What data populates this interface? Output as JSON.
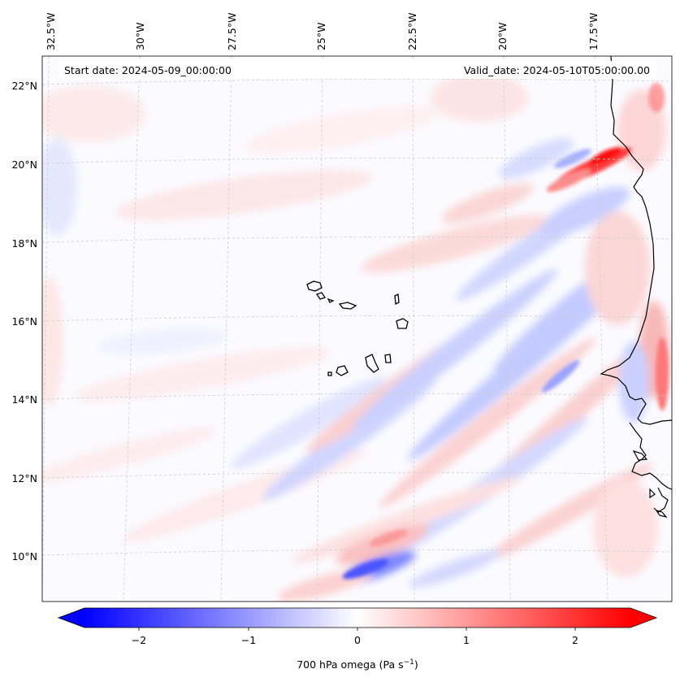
{
  "figure": {
    "start_date_label": "Start date: 2024-05-09_00:00:00",
    "valid_date_label": "Valid_date: 2024-05-10T05:00:00.00"
  },
  "map": {
    "projection": "lambert-conformal",
    "region": "Eastern tropical Atlantic – Cape Verde and West African coast",
    "lon_ticks": [
      "32.5°W",
      "30°W",
      "27.5°W",
      "25°W",
      "22.5°W",
      "20°W",
      "17.5°W"
    ],
    "lat_ticks": [
      "22°N",
      "20°N",
      "18°N",
      "16°N",
      "14°N",
      "12°N",
      "10°N"
    ],
    "gridlines": "dashed light grey",
    "field": "700 hPa vertical velocity (omega)"
  },
  "colorbar": {
    "label_main": "700 hPa omega (Pa s",
    "label_sup": "−1",
    "label_end": ")",
    "ticks": [
      "−2",
      "−1",
      "0",
      "1",
      "2"
    ],
    "range": [
      -2.6,
      2.6
    ],
    "extend": "both",
    "cmap": "bwr",
    "color_min": "#0000ff",
    "color_mid": "#ffffff",
    "color_max": "#ff0000"
  }
}
